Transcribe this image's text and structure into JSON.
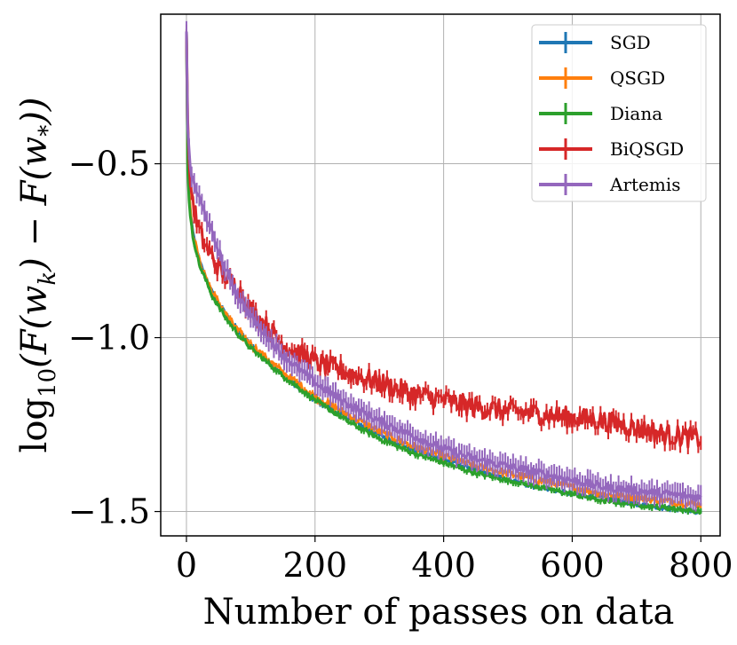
{
  "chart_data": {
    "type": "line",
    "title": "",
    "xlabel": "Number of passes on data",
    "ylabel_parts": {
      "pre": "log",
      "sub": "10",
      "post": "(F(w",
      "sub2": "k",
      "mid": ") − F(w",
      "sub3": "*",
      "end": "))"
    },
    "xlim": [
      -40,
      830
    ],
    "ylim": [
      -1.57,
      -0.07
    ],
    "x_ticks": [
      0,
      200,
      400,
      600,
      800
    ],
    "x_tick_labels": [
      "0",
      "200",
      "400",
      "600",
      "800"
    ],
    "y_ticks": [
      -0.5,
      -1.0,
      -1.5
    ],
    "y_tick_labels": [
      "−0.5",
      "−1.0",
      "−1.5"
    ],
    "grid": true,
    "legend_position": "upper right",
    "series": [
      {
        "name": "SGD",
        "color": "#1f77b4",
        "width": 3,
        "noise": 0.006,
        "error_band": 0.006,
        "points": [
          [
            0,
            -0.12
          ],
          [
            2,
            -0.5
          ],
          [
            5,
            -0.62
          ],
          [
            10,
            -0.7
          ],
          [
            20,
            -0.78
          ],
          [
            40,
            -0.87
          ],
          [
            60,
            -0.93
          ],
          [
            80,
            -0.98
          ],
          [
            100,
            -1.02
          ],
          [
            150,
            -1.11
          ],
          [
            200,
            -1.18
          ],
          [
            250,
            -1.23
          ],
          [
            300,
            -1.28
          ],
          [
            350,
            -1.32
          ],
          [
            400,
            -1.35
          ],
          [
            450,
            -1.38
          ],
          [
            500,
            -1.41
          ],
          [
            550,
            -1.43
          ],
          [
            600,
            -1.45
          ],
          [
            650,
            -1.46
          ],
          [
            700,
            -1.48
          ],
          [
            750,
            -1.49
          ],
          [
            800,
            -1.5
          ]
        ]
      },
      {
        "name": "QSGD",
        "color": "#ff7f0e",
        "width": 3,
        "noise": 0.01,
        "error_band": 0.008,
        "points": [
          [
            0,
            -0.12
          ],
          [
            2,
            -0.5
          ],
          [
            5,
            -0.62
          ],
          [
            10,
            -0.7
          ],
          [
            20,
            -0.78
          ],
          [
            40,
            -0.87
          ],
          [
            60,
            -0.93
          ],
          [
            80,
            -0.98
          ],
          [
            100,
            -1.02
          ],
          [
            150,
            -1.1
          ],
          [
            200,
            -1.17
          ],
          [
            250,
            -1.22
          ],
          [
            300,
            -1.27
          ],
          [
            350,
            -1.31
          ],
          [
            400,
            -1.34
          ],
          [
            450,
            -1.37
          ],
          [
            500,
            -1.39
          ],
          [
            550,
            -1.41
          ],
          [
            600,
            -1.43
          ],
          [
            650,
            -1.45
          ],
          [
            700,
            -1.46
          ],
          [
            750,
            -1.47
          ],
          [
            800,
            -1.48
          ]
        ]
      },
      {
        "name": "Diana",
        "color": "#2ca02c",
        "width": 3,
        "noise": 0.006,
        "error_band": 0.008,
        "points": [
          [
            0,
            -0.12
          ],
          [
            2,
            -0.52
          ],
          [
            5,
            -0.64
          ],
          [
            10,
            -0.71
          ],
          [
            20,
            -0.79
          ],
          [
            40,
            -0.88
          ],
          [
            60,
            -0.94
          ],
          [
            80,
            -0.99
          ],
          [
            100,
            -1.03
          ],
          [
            150,
            -1.11
          ],
          [
            200,
            -1.18
          ],
          [
            250,
            -1.24
          ],
          [
            300,
            -1.29
          ],
          [
            350,
            -1.33
          ],
          [
            400,
            -1.36
          ],
          [
            450,
            -1.39
          ],
          [
            500,
            -1.41
          ],
          [
            550,
            -1.43
          ],
          [
            600,
            -1.45
          ],
          [
            650,
            -1.47
          ],
          [
            700,
            -1.48
          ],
          [
            750,
            -1.49
          ],
          [
            800,
            -1.5
          ]
        ]
      },
      {
        "name": "BiQSGD",
        "color": "#d62728",
        "width": 3,
        "noise": 0.03,
        "error_band": 0.02,
        "points": [
          [
            0,
            -0.12
          ],
          [
            3,
            -0.5
          ],
          [
            8,
            -0.58
          ],
          [
            15,
            -0.66
          ],
          [
            25,
            -0.72
          ],
          [
            40,
            -0.77
          ],
          [
            60,
            -0.82
          ],
          [
            80,
            -0.86
          ],
          [
            100,
            -0.92
          ],
          [
            150,
            -1.02
          ],
          [
            200,
            -1.07
          ],
          [
            250,
            -1.1
          ],
          [
            300,
            -1.13
          ],
          [
            350,
            -1.16
          ],
          [
            400,
            -1.18
          ],
          [
            450,
            -1.2
          ],
          [
            500,
            -1.21
          ],
          [
            550,
            -1.22
          ],
          [
            600,
            -1.23
          ],
          [
            650,
            -1.24
          ],
          [
            700,
            -1.26
          ],
          [
            750,
            -1.28
          ],
          [
            800,
            -1.29
          ]
        ]
      },
      {
        "name": "Artemis",
        "color": "#9467bd",
        "width": 3,
        "noise": 0.012,
        "error_band": 0.03,
        "points": [
          [
            0,
            -0.12
          ],
          [
            2,
            -0.4
          ],
          [
            5,
            -0.5
          ],
          [
            10,
            -0.55
          ],
          [
            20,
            -0.6
          ],
          [
            40,
            -0.7
          ],
          [
            60,
            -0.8
          ],
          [
            80,
            -0.88
          ],
          [
            100,
            -0.94
          ],
          [
            150,
            -1.05
          ],
          [
            200,
            -1.13
          ],
          [
            250,
            -1.19
          ],
          [
            300,
            -1.24
          ],
          [
            350,
            -1.28
          ],
          [
            400,
            -1.32
          ],
          [
            450,
            -1.35
          ],
          [
            500,
            -1.37
          ],
          [
            550,
            -1.39
          ],
          [
            600,
            -1.41
          ],
          [
            650,
            -1.43
          ],
          [
            700,
            -1.44
          ],
          [
            750,
            -1.45
          ],
          [
            800,
            -1.46
          ]
        ]
      }
    ]
  }
}
